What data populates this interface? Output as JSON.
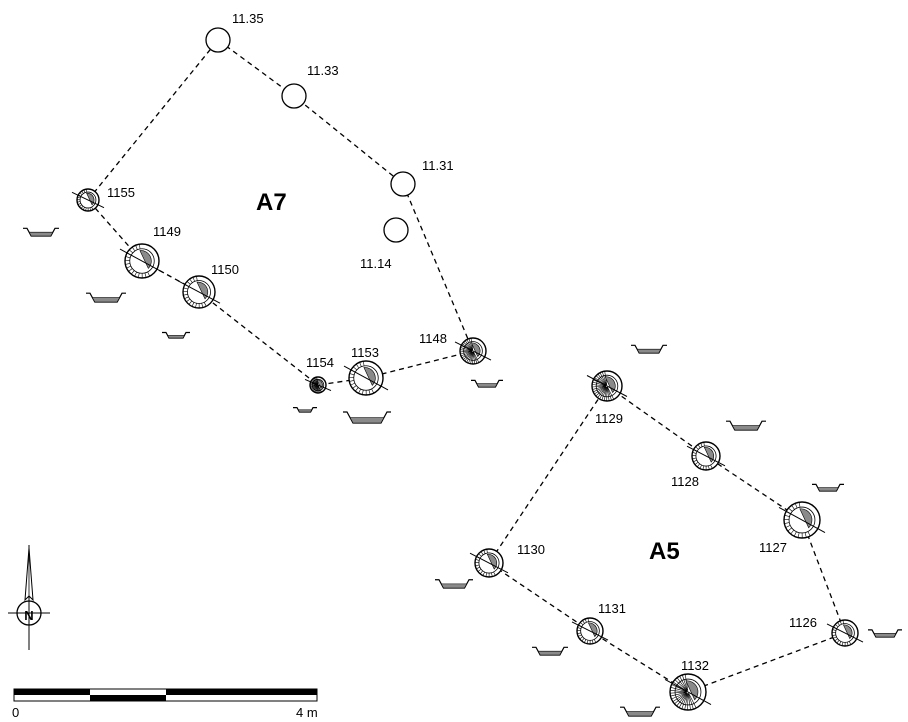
{
  "houses": [
    {
      "id": "A7",
      "label": "A7"
    },
    {
      "id": "A5",
      "label": "A5"
    }
  ],
  "postholes": [
    {
      "id": "11.35",
      "label": "11.35",
      "kind": "empty"
    },
    {
      "id": "11.33",
      "label": "11.33",
      "kind": "empty"
    },
    {
      "id": "11.31",
      "label": "11.31",
      "kind": "empty"
    },
    {
      "id": "11.14",
      "label": "11.14",
      "kind": "empty"
    },
    {
      "id": "1155",
      "label": "1155",
      "kind": "excavated"
    },
    {
      "id": "1149",
      "label": "1149",
      "kind": "excavated"
    },
    {
      "id": "1150",
      "label": "1150",
      "kind": "excavated"
    },
    {
      "id": "1154",
      "label": "1154",
      "kind": "hachured"
    },
    {
      "id": "1153",
      "label": "1153",
      "kind": "excavated"
    },
    {
      "id": "1148",
      "label": "1148",
      "kind": "hachured"
    },
    {
      "id": "1129",
      "label": "1129",
      "kind": "hachured"
    },
    {
      "id": "1128",
      "label": "1128",
      "kind": "excavated"
    },
    {
      "id": "1127",
      "label": "1127",
      "kind": "excavated"
    },
    {
      "id": "1130",
      "label": "1130",
      "kind": "excavated"
    },
    {
      "id": "1131",
      "label": "1131",
      "kind": "excavated"
    },
    {
      "id": "1126",
      "label": "1126",
      "kind": "excavated"
    },
    {
      "id": "1132",
      "label": "1132",
      "kind": "hachured"
    }
  ],
  "outlines": [
    [
      "1155",
      "11.35",
      "11.33",
      "11.31",
      "1148",
      "1153",
      "1154",
      "1150",
      "1149",
      "1155"
    ],
    [
      "1129",
      "1128",
      "1127",
      "1126",
      "1132",
      "1131",
      "1130",
      "1129"
    ]
  ],
  "north_arrow": {
    "label": "N"
  },
  "scale_bar": {
    "start_label": "0",
    "end_label": "4 m",
    "segments": 4
  }
}
